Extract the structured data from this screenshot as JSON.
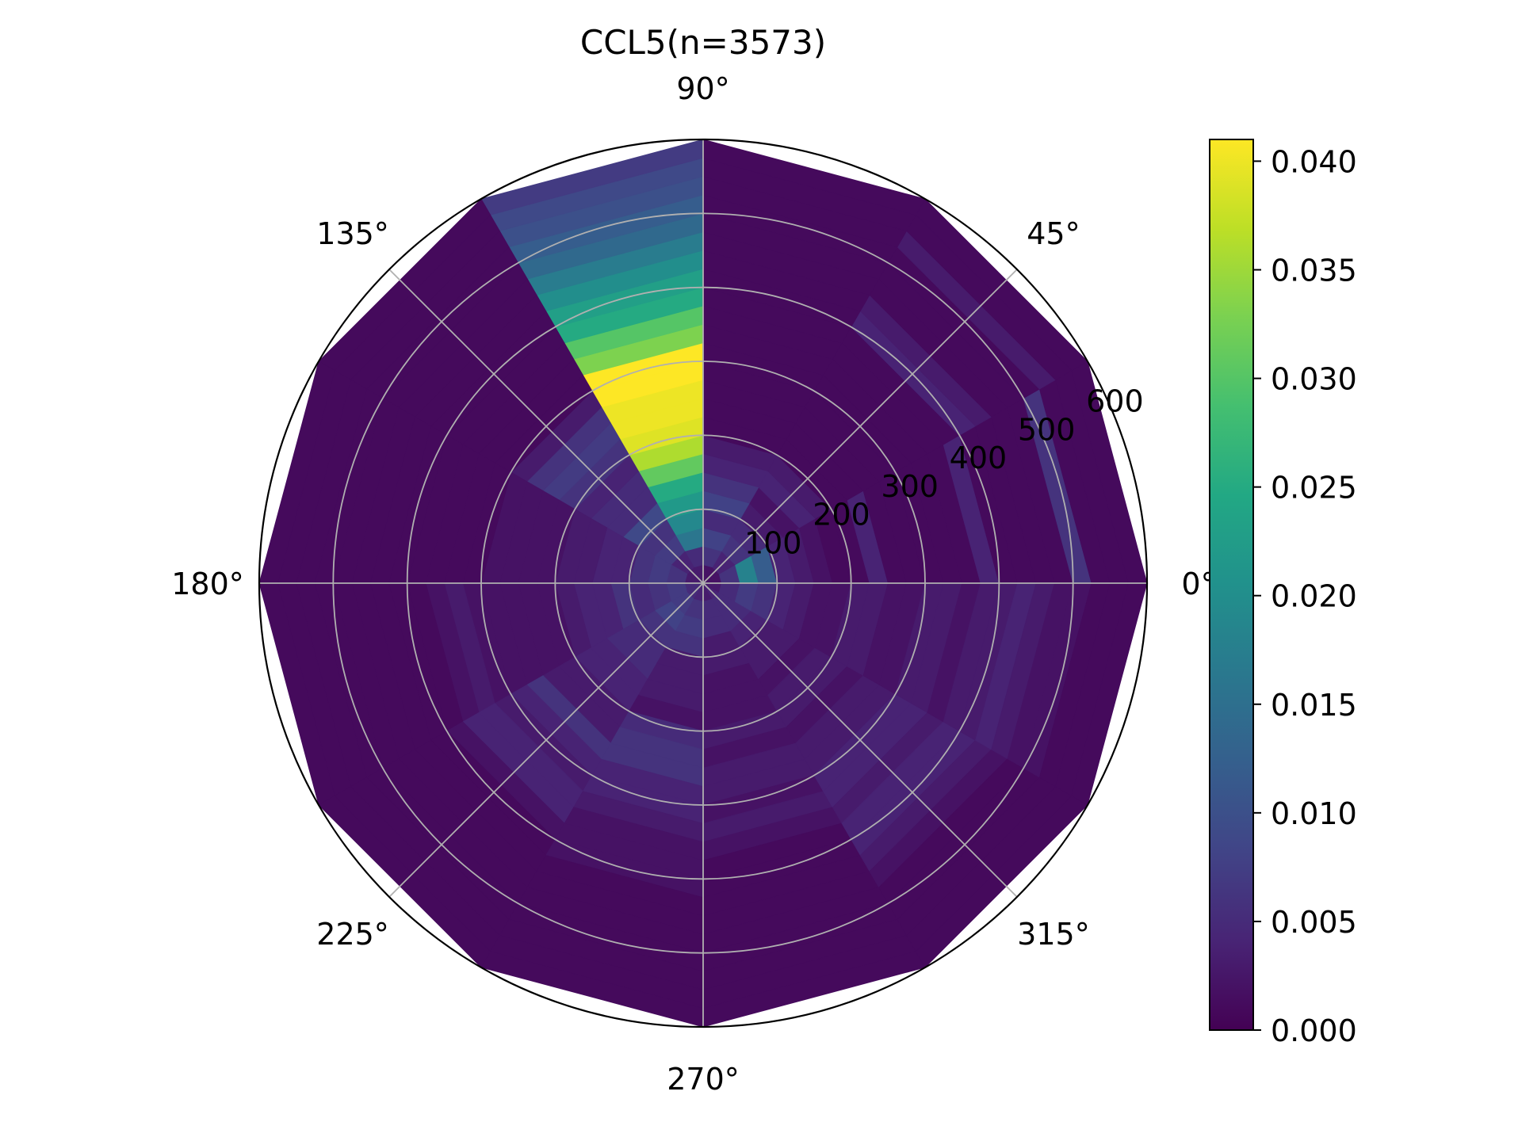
{
  "chart_data": {
    "type": "heatmap",
    "projection": "polar",
    "title": "CCL5(n=3573)",
    "theta_tick_labels": [
      "0°",
      "45°",
      "90°",
      "135°",
      "180°",
      "225°",
      "270°",
      "315°"
    ],
    "theta_ticks_deg": [
      0,
      45,
      90,
      135,
      180,
      225,
      270,
      315
    ],
    "r_tick_labels": [
      "100",
      "200",
      "300",
      "400",
      "500",
      "600"
    ],
    "r_ticks": [
      100,
      200,
      300,
      400,
      500,
      600
    ],
    "rlim": [
      0,
      600
    ],
    "theta_bin_edges_deg": [
      0,
      30,
      60,
      90,
      120,
      150,
      180,
      210,
      240,
      270,
      300,
      330,
      360
    ],
    "r_bin_edges": [
      0,
      25,
      50,
      75,
      100,
      125,
      150,
      175,
      200,
      225,
      250,
      275,
      300,
      325,
      350,
      375,
      400,
      425,
      450,
      475,
      500,
      525,
      550,
      575,
      600
    ],
    "values": [
      [
        0.002,
        0.006,
        0.018,
        0.012,
        0.004,
        0.003,
        0.002,
        0.001,
        0.001,
        0.004,
        0.001,
        0.001,
        0.001,
        0.001,
        0.001,
        0.004,
        0.001,
        0.001,
        0.001,
        0.001,
        0.006,
        0.001,
        0.001,
        0.001
      ],
      [
        0.002,
        0.004,
        0.006,
        0.005,
        0.003,
        0.002,
        0.004,
        0.003,
        0.001,
        0.001,
        0.001,
        0.001,
        0.001,
        0.001,
        0.001,
        0.001,
        0.004,
        0.003,
        0.001,
        0.001,
        0.001,
        0.003,
        0.001,
        0.001
      ],
      [
        0.002,
        0.006,
        0.008,
        0.005,
        0.008,
        0.006,
        0.004,
        0.003,
        0.001,
        0.001,
        0.001,
        0.001,
        0.001,
        0.001,
        0.001,
        0.001,
        0.001,
        0.001,
        0.001,
        0.001,
        0.001,
        0.001,
        0.001,
        0.001
      ],
      [
        0.003,
        0.005,
        0.016,
        0.019,
        0.022,
        0.025,
        0.031,
        0.036,
        0.039,
        0.04,
        0.04,
        0.041,
        0.041,
        0.033,
        0.03,
        0.025,
        0.023,
        0.02,
        0.017,
        0.014,
        0.012,
        0.01,
        0.009,
        0.007
      ],
      [
        0.003,
        0.004,
        0.007,
        0.006,
        0.009,
        0.005,
        0.005,
        0.004,
        0.006,
        0.007,
        0.006,
        0.003,
        0.001,
        0.001,
        0.001,
        0.001,
        0.001,
        0.001,
        0.001,
        0.001,
        0.001,
        0.001,
        0.001,
        0.001
      ],
      [
        0.003,
        0.006,
        0.007,
        0.006,
        0.004,
        0.004,
        0.003,
        0.003,
        0.002,
        0.002,
        0.002,
        0.002,
        0.001,
        0.001,
        0.001,
        0.001,
        0.001,
        0.001,
        0.001,
        0.001,
        0.001,
        0.001,
        0.001,
        0.001
      ],
      [
        0.005,
        0.007,
        0.006,
        0.005,
        0.006,
        0.004,
        0.004,
        0.003,
        0.002,
        0.002,
        0.002,
        0.002,
        0.002,
        0.003,
        0.002,
        0.001,
        0.001,
        0.001,
        0.001,
        0.001,
        0.001,
        0.001,
        0.001,
        0.001
      ],
      [
        0.005,
        0.007,
        0.008,
        0.006,
        0.005,
        0.005,
        0.004,
        0.004,
        0.003,
        0.003,
        0.006,
        0.004,
        0.003,
        0.004,
        0.004,
        0.002,
        0.001,
        0.001,
        0.001,
        0.001,
        0.001,
        0.001,
        0.001,
        0.001
      ],
      [
        0.004,
        0.006,
        0.007,
        0.006,
        0.003,
        0.003,
        0.003,
        0.002,
        0.005,
        0.006,
        0.006,
        0.004,
        0.004,
        0.003,
        0.002,
        0.002,
        0.002,
        0.001,
        0.001,
        0.001,
        0.001,
        0.001,
        0.001,
        0.001
      ],
      [
        0.003,
        0.005,
        0.005,
        0.003,
        0.003,
        0.002,
        0.002,
        0.002,
        0.003,
        0.002,
        0.003,
        0.003,
        0.002,
        0.003,
        0.002,
        0.001,
        0.001,
        0.001,
        0.001,
        0.001,
        0.001,
        0.001,
        0.001,
        0.001
      ],
      [
        0.004,
        0.005,
        0.005,
        0.004,
        0.003,
        0.003,
        0.002,
        0.003,
        0.003,
        0.002,
        0.003,
        0.003,
        0.004,
        0.004,
        0.003,
        0.004,
        0.004,
        0.003,
        0.002,
        0.001,
        0.001,
        0.001,
        0.001,
        0.001
      ],
      [
        0.003,
        0.005,
        0.007,
        0.006,
        0.004,
        0.003,
        0.002,
        0.002,
        0.003,
        0.003,
        0.002,
        0.002,
        0.003,
        0.003,
        0.002,
        0.003,
        0.003,
        0.004,
        0.003,
        0.002,
        0.002,
        0.001,
        0.001,
        0.001
      ]
    ],
    "colorbar": {
      "colormap": "viridis",
      "range": [
        0.0,
        0.041
      ],
      "tick_values": [
        0.0,
        0.005,
        0.01,
        0.015,
        0.02,
        0.025,
        0.03,
        0.035,
        0.04
      ],
      "tick_labels": [
        "0.000",
        "0.005",
        "0.010",
        "0.015",
        "0.020",
        "0.025",
        "0.030",
        "0.035",
        "0.040"
      ]
    },
    "grid": true,
    "legend": "colorbar-right"
  }
}
